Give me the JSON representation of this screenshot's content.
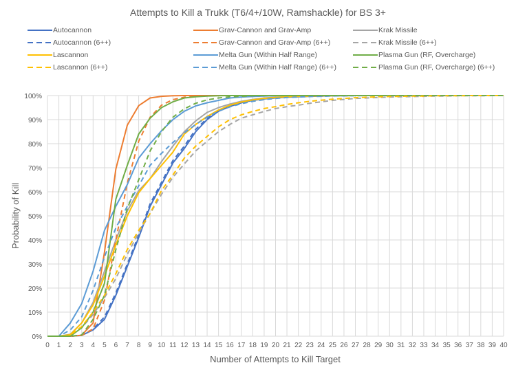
{
  "chart_data": {
    "type": "line",
    "title": "Attempts to Kill a Trukk (T6/4+/10W, Ramshackle) for BS 3+",
    "xlabel": "Number of Attempts to Kill Target",
    "ylabel": "Probability of Kill",
    "xlim": [
      0,
      40
    ],
    "ylim": [
      0,
      100
    ],
    "grid": true,
    "legend_position": "top",
    "x": [
      0,
      1,
      2,
      3,
      4,
      5,
      6,
      7,
      8,
      9,
      10,
      11,
      12,
      13,
      14,
      15,
      16,
      17,
      18,
      19,
      20,
      21,
      22,
      23,
      24,
      25,
      26,
      27,
      28,
      29,
      30,
      31,
      32,
      33,
      34,
      35,
      36,
      37,
      38,
      39,
      40
    ],
    "x_tick_labels": [
      "0",
      "1",
      "2",
      "3",
      "4",
      "5",
      "6",
      "7",
      "8",
      "9",
      "10",
      "11",
      "12",
      "13",
      "14",
      "15",
      "16",
      "17",
      "18",
      "19",
      "20",
      "21",
      "22",
      "23",
      "24",
      "25",
      "26",
      "27",
      "28",
      "29",
      "30",
      "31",
      "32",
      "33",
      "34",
      "35",
      "36",
      "37",
      "38",
      "39",
      "40"
    ],
    "y_ticks": [
      0,
      10,
      20,
      30,
      40,
      50,
      60,
      70,
      80,
      90,
      100
    ],
    "y_tick_labels": [
      "0%",
      "10%",
      "20%",
      "30%",
      "40%",
      "50%",
      "60%",
      "70%",
      "80%",
      "90%",
      "100%"
    ],
    "series": [
      {
        "name": "Autocannon",
        "color": "#4472C4",
        "dash": false,
        "values": [
          0,
          0,
          0,
          0.3,
          2.6,
          7,
          17,
          29,
          41,
          54,
          63,
          72,
          78,
          85,
          90,
          93.5,
          95.5,
          97,
          98,
          98.6,
          99,
          99.3,
          99.5,
          99.7,
          99.8,
          99.9,
          99.9,
          100,
          100,
          100,
          100,
          100,
          100,
          100,
          100,
          100,
          100,
          100,
          100,
          100,
          100
        ]
      },
      {
        "name": "Grav-Cannon and Grav-Amp",
        "color": "#ED7D31",
        "dash": false,
        "values": [
          0,
          0,
          0,
          0.4,
          5.5,
          35,
          69.5,
          87.7,
          95.8,
          99,
          99.7,
          99.9,
          100,
          100,
          100,
          100,
          100,
          100,
          100,
          100,
          100,
          100,
          100,
          100,
          100,
          100,
          100,
          100,
          100,
          100,
          100,
          100,
          100,
          100,
          100,
          100,
          100,
          100,
          100,
          100,
          100
        ]
      },
      {
        "name": "Krak Missile",
        "color": "#A5A5A5",
        "dash": false,
        "values": [
          0,
          0,
          0.8,
          5.5,
          14,
          27,
          40,
          52,
          60.5,
          65.5,
          72.6,
          79,
          85,
          89.5,
          93,
          95,
          96.5,
          97.6,
          98.4,
          99,
          99.3,
          99.5,
          99.7,
          99.8,
          99.9,
          99.9,
          100,
          100,
          100,
          100,
          100,
          100,
          100,
          100,
          100,
          100,
          100,
          100,
          100,
          100,
          100
        ]
      },
      {
        "name": "Autocannon (6++)",
        "color": "#4472C4",
        "dash": true,
        "values": [
          0,
          0,
          0,
          0.5,
          3,
          8,
          18,
          30,
          42,
          55,
          64,
          73,
          79,
          86,
          90.5,
          93.8,
          95.8,
          97.2,
          98.1,
          98.7,
          99.1,
          99.4,
          99.6,
          99.7,
          99.8,
          99.9,
          99.9,
          100,
          100,
          100,
          100,
          100,
          100,
          100,
          100,
          100,
          100,
          100,
          100,
          100,
          100
        ]
      },
      {
        "name": "Grav-Cannon and Grav-Amp (6++)",
        "color": "#ED7D31",
        "dash": true,
        "values": [
          0,
          0,
          0,
          0.3,
          3,
          15,
          40,
          63.5,
          81,
          91,
          96,
          98.3,
          99.3,
          99.7,
          99.9,
          100,
          100,
          100,
          100,
          100,
          100,
          100,
          100,
          100,
          100,
          100,
          100,
          100,
          100,
          100,
          100,
          100,
          100,
          100,
          100,
          100,
          100,
          100,
          100,
          100,
          100
        ]
      },
      {
        "name": "Krak Missile (6++)",
        "color": "#A5A5A5",
        "dash": true,
        "values": [
          0,
          0,
          0.5,
          3.5,
          9,
          16,
          24,
          34,
          43,
          51,
          59,
          66,
          71.6,
          77,
          81,
          85,
          88,
          90.6,
          92,
          93.4,
          94.6,
          95.4,
          96,
          96.8,
          97.4,
          98,
          98.4,
          98.8,
          99,
          99.2,
          99.4,
          99.5,
          99.6,
          99.7,
          99.8,
          99.8,
          99.9,
          99.9,
          99.9,
          100,
          100
        ]
      },
      {
        "name": "Lascannon",
        "color": "#FFC000",
        "dash": false,
        "values": [
          0,
          0,
          0.6,
          5.5,
          13,
          25,
          38,
          50,
          59.6,
          65.5,
          71,
          76.5,
          84,
          88,
          91.3,
          94,
          96,
          97.3,
          98.2,
          98.8,
          99.2,
          99.5,
          99.7,
          99.8,
          99.9,
          99.9,
          100,
          100,
          100,
          100,
          100,
          100,
          100,
          100,
          100,
          100,
          100,
          100,
          100,
          100,
          100
        ]
      },
      {
        "name": "Melta Gun (Within Half Range)",
        "color": "#5B9BD5",
        "dash": false,
        "values": [
          0,
          0,
          5.5,
          13.5,
          27,
          44,
          54,
          63,
          74,
          80,
          85.4,
          90,
          93.5,
          95.7,
          97,
          98,
          99,
          99.4,
          99.6,
          99.8,
          99.9,
          100,
          100,
          100,
          100,
          100,
          100,
          100,
          100,
          100,
          100,
          100,
          100,
          100,
          100,
          100,
          100,
          100,
          100,
          100,
          100
        ]
      },
      {
        "name": "Plasma Gun (RF, Overcharge)",
        "color": "#70AD47",
        "dash": false,
        "values": [
          0,
          0,
          0,
          3.5,
          10,
          22,
          57,
          71,
          84,
          90.6,
          95,
          97.4,
          99,
          99.5,
          99.8,
          99.9,
          100,
          100,
          100,
          100,
          100,
          100,
          100,
          100,
          100,
          100,
          100,
          100,
          100,
          100,
          100,
          100,
          100,
          100,
          100,
          100,
          100,
          100,
          100,
          100,
          100
        ]
      },
      {
        "name": "Lascannon (6++)",
        "color": "#FFC000",
        "dash": true,
        "values": [
          0,
          0,
          0.5,
          4,
          10,
          17,
          26,
          36,
          44,
          51,
          60.6,
          67,
          74,
          79,
          83,
          87,
          90,
          92,
          93.4,
          94.6,
          95.4,
          96.3,
          97,
          97.6,
          98.1,
          98.5,
          98.8,
          99.1,
          99.3,
          99.5,
          99.6,
          99.7,
          99.8,
          99.8,
          99.9,
          99.9,
          99.9,
          100,
          100,
          100,
          100
        ]
      },
      {
        "name": "Melta Gun (Within Half Range) (6++)",
        "color": "#5B9BD5",
        "dash": true,
        "values": [
          0,
          0,
          2.6,
          8,
          19,
          33,
          45,
          54,
          62.5,
          71,
          76,
          80.5,
          84.5,
          88,
          91,
          93.5,
          95.3,
          96.6,
          97.6,
          98.3,
          98.8,
          99.2,
          99.4,
          99.6,
          99.7,
          99.8,
          99.9,
          99.9,
          100,
          100,
          100,
          100,
          100,
          100,
          100,
          100,
          100,
          100,
          100,
          100,
          100
        ]
      },
      {
        "name": "Plasma Gun (RF, Overcharge) (6++)",
        "color": "#70AD47",
        "dash": true,
        "values": [
          0,
          0,
          0,
          0.5,
          7,
          17,
          36,
          53,
          65,
          77,
          85,
          91,
          94.5,
          96.8,
          98.2,
          99,
          99.5,
          99.7,
          99.9,
          100,
          100,
          100,
          100,
          100,
          100,
          100,
          100,
          100,
          100,
          100,
          100,
          100,
          100,
          100,
          100,
          100,
          100,
          100,
          100,
          100,
          100
        ]
      }
    ]
  }
}
